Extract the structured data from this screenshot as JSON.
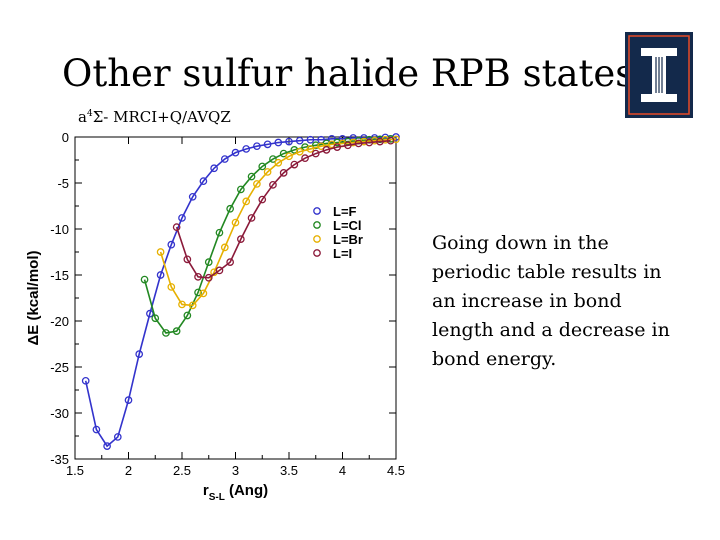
{
  "slide": {
    "title": "Other sulfur halide RPB states",
    "subtitle_pre": "a",
    "subtitle_sup": "4",
    "subtitle_post": "Σ- MRCI+Q/AVQZ",
    "note": "Going down in the periodic table results in an increase in bond length and a decrease in bond energy.",
    "logo_letter": "I",
    "colors": {
      "logo_blue": "#13294b",
      "logo_orange": "#e84a27"
    }
  },
  "chart_data": {
    "type": "line",
    "xlabel": "r",
    "xlabel_sub": "S-L",
    "xlabel_unit": "(Ang)",
    "ylabel": "ΔE (kcal/mol)",
    "xlim": [
      1.5,
      4.5
    ],
    "ylim": [
      -35,
      0
    ],
    "xticks": [
      "1.5",
      "2",
      "2.5",
      "3",
      "3.5",
      "4",
      "4.5"
    ],
    "yticks": [
      "0",
      "-5",
      "-10",
      "-15",
      "-20",
      "-25",
      "-30",
      "-35"
    ],
    "grid": false,
    "legend_position": "right",
    "series": [
      {
        "name": "L=F",
        "color": "#3333cc",
        "x": [
          1.6,
          1.7,
          1.8,
          1.9,
          2.0,
          2.1,
          2.2,
          2.3,
          2.4,
          2.5,
          2.6,
          2.7,
          2.8,
          2.9,
          3.0,
          3.1,
          3.2,
          3.3,
          3.4,
          3.5,
          3.6,
          3.7,
          3.8,
          3.9,
          4.0,
          4.1,
          4.2,
          4.3,
          4.4,
          4.5
        ],
        "y": [
          -26.5,
          -31.8,
          -33.6,
          -32.6,
          -28.6,
          -23.6,
          -19.2,
          -15.0,
          -11.7,
          -8.8,
          -6.5,
          -4.8,
          -3.4,
          -2.4,
          -1.7,
          -1.3,
          -1.0,
          -0.8,
          -0.6,
          -0.5,
          -0.4,
          -0.3,
          -0.3,
          -0.2,
          -0.2,
          -0.1,
          -0.1,
          -0.1,
          -0.05,
          0.0
        ]
      },
      {
        "name": "L=Cl",
        "color": "#228822",
        "x": [
          2.15,
          2.25,
          2.35,
          2.45,
          2.55,
          2.65,
          2.75,
          2.85,
          2.95,
          3.05,
          3.15,
          3.25,
          3.35,
          3.45,
          3.55,
          3.65,
          3.75,
          3.85,
          3.95,
          4.05,
          4.15,
          4.25,
          4.35,
          4.45
        ],
        "y": [
          -15.5,
          -19.7,
          -21.3,
          -21.1,
          -19.4,
          -16.9,
          -13.6,
          -10.4,
          -7.8,
          -5.7,
          -4.3,
          -3.2,
          -2.4,
          -1.8,
          -1.4,
          -1.1,
          -0.9,
          -0.7,
          -0.6,
          -0.5,
          -0.4,
          -0.3,
          -0.25,
          -0.2
        ]
      },
      {
        "name": "L=Br",
        "color": "#e6b000",
        "x": [
          2.3,
          2.4,
          2.5,
          2.6,
          2.7,
          2.8,
          2.9,
          3.0,
          3.1,
          3.2,
          3.3,
          3.4,
          3.5,
          3.6,
          3.7,
          3.8,
          3.9,
          4.0,
          4.1,
          4.2,
          4.3,
          4.4,
          4.5
        ],
        "y": [
          -12.5,
          -16.3,
          -18.2,
          -18.3,
          -17.0,
          -14.7,
          -12.0,
          -9.3,
          -7.0,
          -5.1,
          -3.8,
          -2.8,
          -2.1,
          -1.6,
          -1.3,
          -1.0,
          -0.8,
          -0.7,
          -0.6,
          -0.5,
          -0.4,
          -0.3,
          -0.25
        ]
      },
      {
        "name": "L=I",
        "color": "#8b1a3a",
        "x": [
          2.45,
          2.55,
          2.65,
          2.75,
          2.85,
          2.95,
          3.05,
          3.15,
          3.25,
          3.35,
          3.45,
          3.55,
          3.65,
          3.75,
          3.85,
          3.95,
          4.05,
          4.15,
          4.25,
          4.35,
          4.45
        ],
        "y": [
          -9.8,
          -13.3,
          -15.2,
          -15.3,
          -14.5,
          -13.6,
          -11.1,
          -8.8,
          -6.8,
          -5.2,
          -3.9,
          -3.0,
          -2.3,
          -1.8,
          -1.4,
          -1.1,
          -0.9,
          -0.7,
          -0.6,
          -0.5,
          -0.4
        ]
      }
    ]
  }
}
